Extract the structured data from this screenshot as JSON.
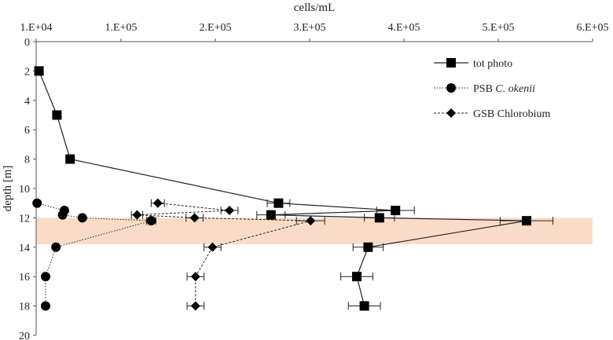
{
  "chart_data": {
    "type": "scatter",
    "title": "",
    "xlabel": "cells/mL",
    "ylabel": "depth [m]",
    "xlim": [
      10000,
      600000
    ],
    "ylim": [
      20,
      0
    ],
    "x_ticks": [
      10000,
      100000,
      200000,
      300000,
      400000,
      500000,
      600000
    ],
    "x_tick_labels": [
      "1.E+04",
      "1.E+05",
      "2.E+05",
      "3.E+05",
      "4.E+05",
      "5.E+05",
      "6.E+05"
    ],
    "y_ticks": [
      0,
      2,
      4,
      6,
      8,
      10,
      12,
      14,
      16,
      18,
      20
    ],
    "y_tick_labels": [
      "0",
      "2",
      "4",
      "6",
      "8",
      "10",
      "12",
      "14",
      "16",
      "18",
      "20"
    ],
    "x_axis_position": "top",
    "y_reversed": true,
    "grid": false,
    "legend_position": "top-right",
    "shaded_band": {
      "depth_from": 12,
      "depth_to": 13.8,
      "color": "#f9dcc8"
    },
    "series": [
      {
        "name": "tot photo",
        "line_style": "solid",
        "marker": "square",
        "points": [
          {
            "x": 13000,
            "y": 2
          },
          {
            "x": 32000,
            "y": 5
          },
          {
            "x": 46000,
            "y": 8
          },
          {
            "x": 267000,
            "y": 11,
            "xerr": 12000
          },
          {
            "x": 391000,
            "y": 11.5,
            "xerr": 20000
          },
          {
            "x": 259000,
            "y": 11.8,
            "xerr": 15000
          },
          {
            "x": 374000,
            "y": 12,
            "xerr": 16000
          },
          {
            "x": 530000,
            "y": 12.2,
            "xerr": 28000
          },
          {
            "x": 362000,
            "y": 14,
            "xerr": 16000
          },
          {
            "x": 350000,
            "y": 16,
            "xerr": 17000
          },
          {
            "x": 358000,
            "y": 18,
            "xerr": 17000
          }
        ]
      },
      {
        "name": "PSB C. okenii",
        "name_label": "PSB",
        "name_label_italic": "C. okenii",
        "line_style": "dotted",
        "marker": "circle",
        "points": [
          {
            "x": 11000,
            "y": 11
          },
          {
            "x": 40000,
            "y": 11.5
          },
          {
            "x": 38000,
            "y": 11.8
          },
          {
            "x": 59000,
            "y": 12
          },
          {
            "x": 132000,
            "y": 12.2,
            "xerr": 5000
          },
          {
            "x": 31000,
            "y": 14
          },
          {
            "x": 20000,
            "y": 16
          },
          {
            "x": 20000,
            "y": 18
          }
        ]
      },
      {
        "name": "GSB Chlorobium",
        "line_style": "dashed",
        "marker": "diamond",
        "points": [
          {
            "x": 139000,
            "y": 11,
            "xerr": 7000
          },
          {
            "x": 215000,
            "y": 11.5,
            "xerr": 9000
          },
          {
            "x": 117000,
            "y": 11.8,
            "xerr": 6000
          },
          {
            "x": 178000,
            "y": 12,
            "xerr": 9000
          },
          {
            "x": 301000,
            "y": 12.2,
            "xerr": 15000
          },
          {
            "x": 197000,
            "y": 14,
            "xerr": 9000
          },
          {
            "x": 179000,
            "y": 16,
            "xerr": 9000
          },
          {
            "x": 179000,
            "y": 18,
            "xerr": 9000
          }
        ]
      }
    ]
  }
}
